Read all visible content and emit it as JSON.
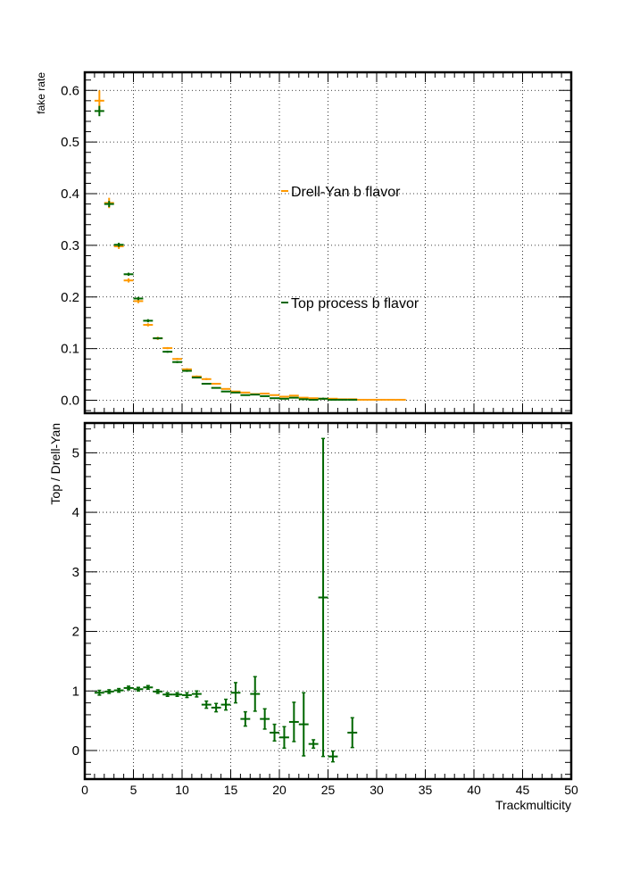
{
  "colors": {
    "drell_yan": "#ff9900",
    "top": "#006600",
    "frame": "#000000",
    "background": "#ffffff"
  },
  "chart_data": [
    {
      "type": "scatter",
      "panel": "top",
      "title": "",
      "xlabel": "",
      "ylabel": "fake rate",
      "xlim": [
        0,
        50
      ],
      "ylim": [
        -0.025,
        0.635
      ],
      "xticks": [
        0,
        5,
        10,
        15,
        20,
        25,
        30,
        35,
        40,
        45,
        50
      ],
      "yticks": [
        0.0,
        0.1,
        0.2,
        0.3,
        0.4,
        0.5,
        0.6
      ],
      "ytick_labels": [
        "0.0",
        "0.1",
        "0.2",
        "0.3",
        "0.4",
        "0.5",
        "0.6"
      ],
      "grid": true,
      "legend_placement": "center",
      "series": [
        {
          "name": "Drell-Yan b flavor",
          "color": "#ff9900",
          "x": [
            1.5,
            2.5,
            3.5,
            4.5,
            5.5,
            6.5,
            7.5,
            8.5,
            9.5,
            10.5,
            11.5,
            12.5,
            13.5,
            14.5,
            15.5,
            16.5,
            17.5,
            18.5,
            19.5,
            20.5,
            21.5,
            22.5,
            23.5,
            24.5,
            25.5,
            26.5,
            27.5,
            28.5,
            29.5,
            30.5,
            31.5,
            32.5
          ],
          "y": [
            0.58,
            0.382,
            0.298,
            0.232,
            0.192,
            0.146,
            0.12,
            0.101,
            0.08,
            0.06,
            0.046,
            0.041,
            0.032,
            0.022,
            0.017,
            0.015,
            0.012,
            0.013,
            0.01,
            0.007,
            0.009,
            0.005,
            0.004,
            0.003,
            0.003,
            0.002,
            0.002,
            0.001,
            0.001,
            0.001,
            0.001,
            0.001
          ],
          "yerr": [
            0.02,
            0.01,
            0.005,
            0.004,
            0.004,
            0.003,
            0.003,
            0.002,
            0.002,
            0.002,
            0.002,
            0.002,
            0.001,
            0.001,
            0.001,
            0.001,
            0.001,
            0.001,
            0.001,
            0.001,
            0.001,
            0.001,
            0.001,
            0.001,
            0.001,
            0.001,
            0.001,
            0.001,
            0.001,
            0.001,
            0.001,
            0.001
          ]
        },
        {
          "name": "Top process b flavor",
          "color": "#006600",
          "x": [
            1.5,
            2.5,
            3.5,
            4.5,
            5.5,
            6.5,
            7.5,
            8.5,
            9.5,
            10.5,
            11.5,
            12.5,
            13.5,
            14.5,
            15.5,
            16.5,
            17.5,
            18.5,
            19.5,
            20.5,
            21.5,
            22.5,
            23.5,
            24.5,
            25.5,
            26.5,
            27.5
          ],
          "y": [
            0.56,
            0.38,
            0.301,
            0.244,
            0.197,
            0.154,
            0.12,
            0.094,
            0.074,
            0.057,
            0.044,
            0.032,
            0.024,
            0.017,
            0.015,
            0.01,
            0.011,
            0.008,
            0.004,
            0.003,
            0.005,
            0.002,
            0.001,
            0.003,
            0.001,
            0.001,
            0.001
          ],
          "yerr": [
            0.01,
            0.006,
            0.004,
            0.003,
            0.003,
            0.003,
            0.002,
            0.002,
            0.002,
            0.002,
            0.001,
            0.001,
            0.001,
            0.001,
            0.001,
            0.001,
            0.001,
            0.001,
            0.001,
            0.001,
            0.001,
            0.001,
            0.001,
            0.002,
            0.001,
            0.001,
            0.001
          ]
        }
      ]
    },
    {
      "type": "scatter",
      "panel": "bottom",
      "title": "",
      "xlabel": "Trackmulticity",
      "ylabel": "Top / Drell-Yan",
      "xlim": [
        0,
        50
      ],
      "ylim": [
        -0.48,
        5.5
      ],
      "xticks": [
        0,
        5,
        10,
        15,
        20,
        25,
        30,
        35,
        40,
        45,
        50
      ],
      "xtick_labels": [
        "0",
        "5",
        "10",
        "15",
        "20",
        "25",
        "30",
        "35",
        "40",
        "45",
        "50"
      ],
      "yticks": [
        0,
        1,
        2,
        3,
        4,
        5
      ],
      "ytick_labels": [
        "0",
        "1",
        "2",
        "3",
        "4",
        "5"
      ],
      "grid": true,
      "series": [
        {
          "color": "#006600",
          "x": [
            1.5,
            2.5,
            3.5,
            4.5,
            5.5,
            6.5,
            7.5,
            8.5,
            9.5,
            10.5,
            11.5,
            12.5,
            13.5,
            14.5,
            15.5,
            16.5,
            17.5,
            18.5,
            19.5,
            20.5,
            21.5,
            22.5,
            23.5,
            24.5,
            25.5,
            27.5
          ],
          "y": [
            0.97,
            0.99,
            1.01,
            1.05,
            1.03,
            1.06,
            0.99,
            0.94,
            0.94,
            0.93,
            0.95,
            0.77,
            0.72,
            0.77,
            0.97,
            0.53,
            0.95,
            0.53,
            0.3,
            0.22,
            0.48,
            0.44,
            0.11,
            2.57,
            -0.1,
            0.3
          ],
          "yerr": [
            0.04,
            0.03,
            0.03,
            0.03,
            0.03,
            0.03,
            0.03,
            0.03,
            0.03,
            0.04,
            0.05,
            0.06,
            0.07,
            0.09,
            0.17,
            0.12,
            0.29,
            0.17,
            0.14,
            0.18,
            0.33,
            0.53,
            0.07,
            2.67,
            0.09,
            0.25
          ]
        }
      ]
    }
  ]
}
